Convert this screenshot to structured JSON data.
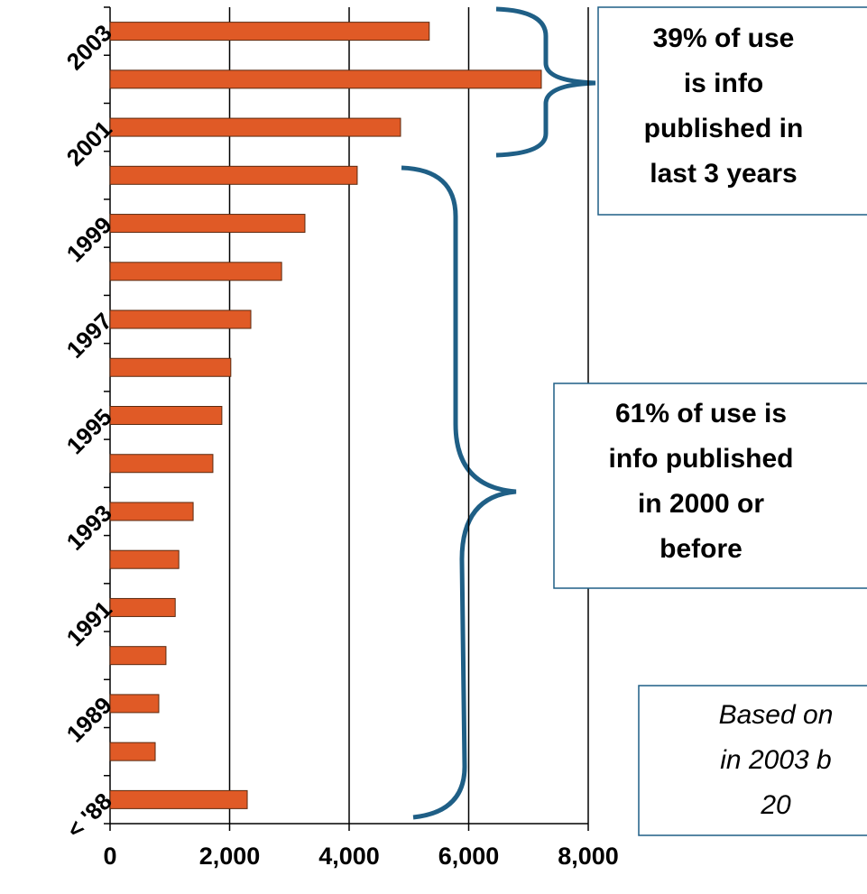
{
  "chart_data": {
    "type": "barh",
    "categories": [
      "2003",
      null,
      "2001",
      null,
      "1999",
      null,
      "1997",
      null,
      "1995",
      null,
      "1993",
      null,
      "1991",
      null,
      "1989",
      null,
      "< '88"
    ],
    "values": [
      5340,
      7215,
      4860,
      4135,
      3260,
      2870,
      2355,
      2020,
      1870,
      1720,
      1390,
      1150,
      1090,
      935,
      815,
      755,
      2295
    ],
    "color": "#e05a26",
    "xlim": [
      0,
      8000
    ],
    "xticks": [
      0,
      {
        "value": 2000,
        "label": "2,000"
      },
      {
        "value": 4000,
        "label": "4,000"
      },
      {
        "value": 6000,
        "label": "6,000"
      },
      {
        "value": 8000,
        "label": "8,000"
      }
    ],
    "grid": true,
    "annotations": [
      {
        "lines": [
          "39% of use",
          "is info",
          "published in",
          "last 3 years"
        ]
      },
      {
        "lines": [
          "61% of use is",
          "info published",
          "in 2000 or",
          "before"
        ]
      },
      {
        "lines": [
          "Based on",
          "in 2003 b",
          "20"
        ]
      }
    ]
  }
}
